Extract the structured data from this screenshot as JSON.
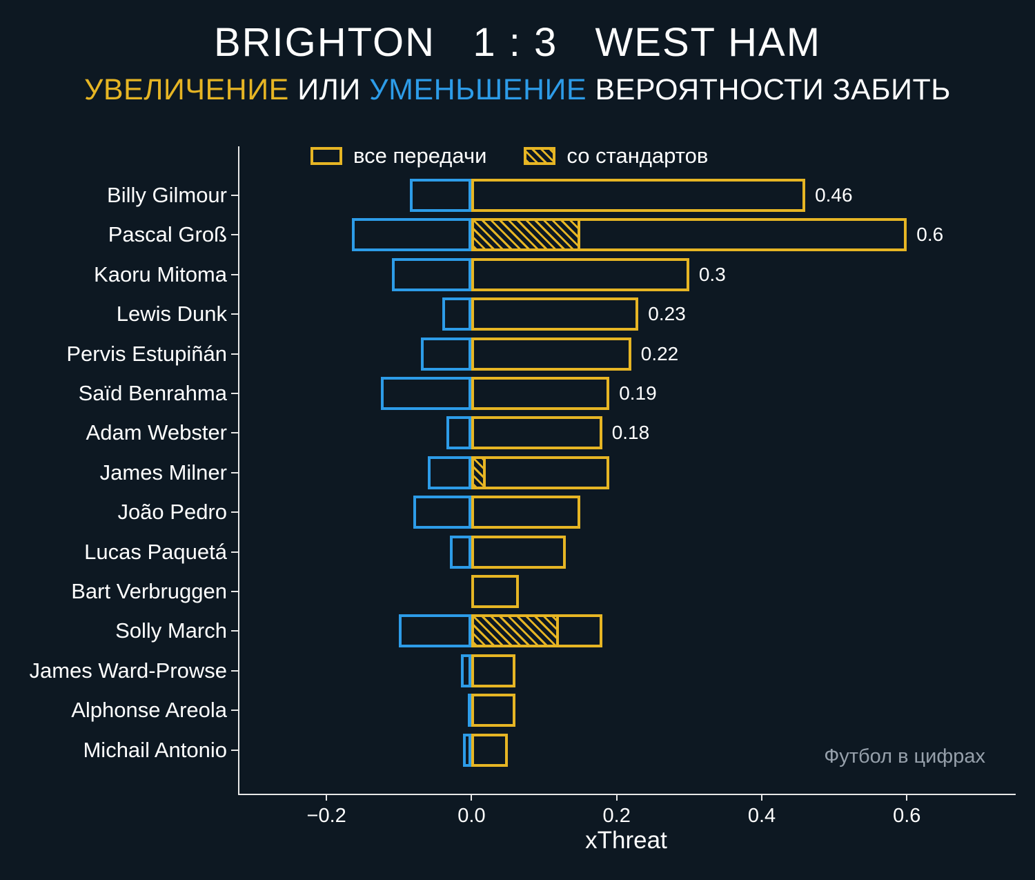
{
  "colors": {
    "background": "#0d1822",
    "yellow": "#e6b524",
    "blue": "#2d9ce8",
    "white": "#ffffff",
    "watermark": "#96a0ab",
    "axis": "#e8e8e8"
  },
  "header": {
    "title": "BRIGHTON   1 : 3   WEST HAM",
    "subtitle_parts": [
      {
        "text": "УВЕЛИЧЕНИЕ",
        "color": "yellow"
      },
      {
        "text": " ИЛИ ",
        "color": "white"
      },
      {
        "text": "УМЕНЬШЕНИЕ",
        "color": "blue"
      },
      {
        "text": " ВЕРОЯТНОСТИ ЗАБИТЬ",
        "color": "white"
      }
    ]
  },
  "legend": {
    "all_passes": "все передачи",
    "set_pieces": "со стандартов"
  },
  "watermark": "Футбол в цифрах",
  "chart_data": {
    "type": "bar",
    "orientation": "horizontal",
    "title": "BRIGHTON 1 : 3 WEST HAM",
    "subtitle": "УВЕЛИЧЕНИЕ ИЛИ УМЕНЬШЕНИЕ ВЕРОЯТНОСТИ ЗАБИТЬ",
    "xlabel": "xThreat",
    "xlim": [
      -0.32,
      0.75
    ],
    "x_ticks": [
      "−0.2",
      "0.0",
      "0.2",
      "0.4",
      "0.6"
    ],
    "x_tick_values": [
      -0.2,
      0.0,
      0.2,
      0.4,
      0.6
    ],
    "legend_entries": [
      {
        "label": "все передачи",
        "style": "outline",
        "color": "#e6b524"
      },
      {
        "label": "со стандартов",
        "style": "hatched",
        "color": "#e6b524"
      }
    ],
    "series_meaning": {
      "increase": "yellow outlined bar, positive xThreat",
      "decrease": "blue outlined bar, negative xThreat",
      "set_piece": "yellow hatched overlay, xThreat from set pieces"
    },
    "players": [
      {
        "name": "Billy Gilmour",
        "increase": 0.46,
        "decrease": -0.085,
        "set_piece": 0,
        "value_label": "0.46"
      },
      {
        "name": "Pascal Groß",
        "increase": 0.6,
        "decrease": -0.165,
        "set_piece": 0.15,
        "value_label": "0.6"
      },
      {
        "name": "Kaoru Mitoma",
        "increase": 0.3,
        "decrease": -0.11,
        "set_piece": 0,
        "value_label": "0.3"
      },
      {
        "name": "Lewis Dunk",
        "increase": 0.23,
        "decrease": -0.04,
        "set_piece": 0,
        "value_label": "0.23"
      },
      {
        "name": "Pervis Estupiñán",
        "increase": 0.22,
        "decrease": -0.07,
        "set_piece": 0,
        "value_label": "0.22"
      },
      {
        "name": "Saïd Benrahma",
        "increase": 0.19,
        "decrease": -0.125,
        "set_piece": 0,
        "value_label": "0.19"
      },
      {
        "name": "Adam Webster",
        "increase": 0.18,
        "decrease": -0.035,
        "set_piece": 0,
        "value_label": "0.18"
      },
      {
        "name": "James Milner",
        "increase": 0.19,
        "decrease": -0.06,
        "set_piece": 0.02,
        "value_label": null
      },
      {
        "name": "João Pedro",
        "increase": 0.15,
        "decrease": -0.08,
        "set_piece": 0,
        "value_label": null
      },
      {
        "name": "Lucas Paquetá",
        "increase": 0.13,
        "decrease": -0.03,
        "set_piece": 0,
        "value_label": null
      },
      {
        "name": "Bart Verbruggen",
        "increase": 0.065,
        "decrease": 0,
        "set_piece": 0,
        "value_label": null
      },
      {
        "name": "Solly March",
        "increase": 0.18,
        "decrease": -0.1,
        "set_piece": 0.12,
        "value_label": null
      },
      {
        "name": "James Ward-Prowse",
        "increase": 0.06,
        "decrease": -0.015,
        "set_piece": 0,
        "value_label": null
      },
      {
        "name": "Alphonse Areola",
        "increase": 0.06,
        "decrease": -0.005,
        "set_piece": 0,
        "value_label": null
      },
      {
        "name": "Michail Antonio",
        "increase": 0.05,
        "decrease": -0.012,
        "set_piece": 0,
        "value_label": null
      }
    ]
  }
}
